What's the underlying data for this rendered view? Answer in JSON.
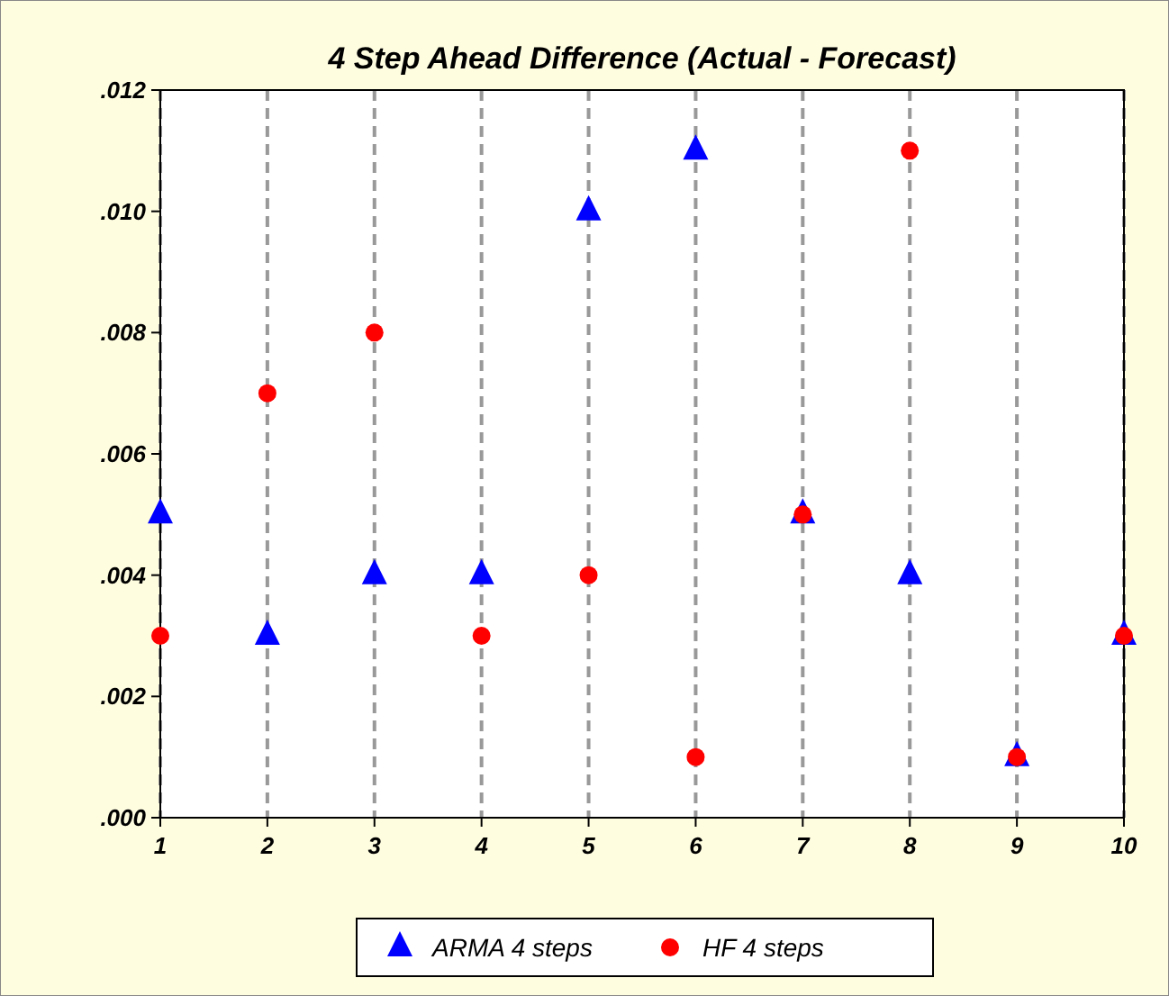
{
  "chart_data": {
    "type": "scatter",
    "title": "4 Step Ahead Difference (Actual - Forecast)",
    "x": [
      1,
      2,
      3,
      4,
      5,
      6,
      7,
      8,
      9,
      10
    ],
    "series": [
      {
        "name": "ARMA 4 steps",
        "color": "#0000ff",
        "marker": "triangle",
        "values": [
          0.005,
          0.003,
          0.004,
          0.004,
          0.01,
          0.011,
          0.005,
          0.004,
          0.001,
          0.003
        ]
      },
      {
        "name": "HF 4 steps",
        "color": "#ff0000",
        "marker": "circle",
        "values": [
          0.003,
          0.007,
          0.008,
          0.003,
          0.004,
          0.001,
          0.005,
          0.011,
          0.001,
          0.003
        ]
      }
    ],
    "xlim": [
      1,
      10
    ],
    "xticks": [
      1,
      2,
      3,
      4,
      5,
      6,
      7,
      8,
      9,
      10
    ],
    "ylim": [
      0,
      0.012
    ],
    "yticks": [
      {
        "value": 0,
        "label": ".000"
      },
      {
        "value": 0.002,
        "label": ".002"
      },
      {
        "value": 0.004,
        "label": ".004"
      },
      {
        "value": 0.006,
        "label": ".006"
      },
      {
        "value": 0.008,
        "label": ".008"
      },
      {
        "value": 0.01,
        "label": ".010"
      },
      {
        "value": 0.012,
        "label": ".012"
      }
    ],
    "grid": "x",
    "legend": "bottom"
  }
}
